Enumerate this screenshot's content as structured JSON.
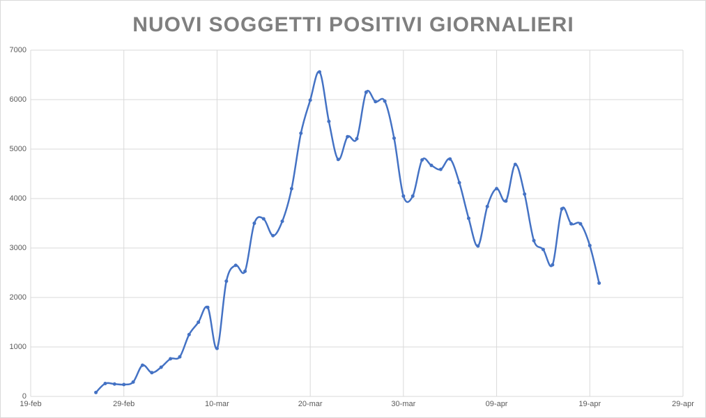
{
  "chart_data": {
    "type": "line",
    "title": "NUOVI SOGGETTI POSITIVI GIORNALIERI",
    "x": [
      "26-feb",
      "27-feb",
      "28-feb",
      "29-feb",
      "01-mar",
      "02-mar",
      "03-mar",
      "04-mar",
      "05-mar",
      "06-mar",
      "07-mar",
      "08-mar",
      "09-mar",
      "10-mar",
      "11-mar",
      "12-mar",
      "13-mar",
      "14-mar",
      "15-mar",
      "16-mar",
      "17-mar",
      "18-mar",
      "19-mar",
      "20-mar",
      "21-mar",
      "22-mar",
      "23-mar",
      "24-mar",
      "25-mar",
      "26-mar",
      "27-mar",
      "28-mar",
      "29-mar",
      "30-mar",
      "31-mar",
      "01-apr",
      "02-apr",
      "03-apr",
      "04-apr",
      "05-apr",
      "06-apr",
      "07-apr",
      "08-apr",
      "09-apr",
      "10-apr",
      "11-apr",
      "12-apr",
      "13-apr",
      "14-apr",
      "15-apr",
      "16-apr",
      "17-apr",
      "18-apr",
      "19-apr",
      "20-apr"
    ],
    "series": [
      {
        "color": "#4472c4",
        "values": [
          80,
          260,
          250,
          240,
          290,
          630,
          480,
          590,
          760,
          800,
          1250,
          1500,
          1800,
          970,
          2330,
          2650,
          2530,
          3500,
          3590,
          3250,
          3540,
          4200,
          5320,
          5990,
          6560,
          5560,
          4790,
          5250,
          5210,
          6150,
          5960,
          5970,
          5220,
          4050,
          4050,
          4780,
          4670,
          4590,
          4800,
          4320,
          3600,
          3040,
          3840,
          4200,
          3950,
          4690,
          4090,
          3150,
          2970,
          2660,
          3790,
          3490,
          3490,
          3050,
          2290
        ]
      }
    ],
    "xlim": [
      "19-feb",
      "29-apr"
    ],
    "xticks": [
      "19-feb",
      "29-feb",
      "10-mar",
      "20-mar",
      "30-mar",
      "09-apr",
      "19-apr",
      "29-apr"
    ],
    "ylim": [
      0,
      7000
    ],
    "yticks": [
      0,
      1000,
      2000,
      3000,
      4000,
      5000,
      6000,
      7000
    ],
    "grid": true,
    "smooth": true
  }
}
